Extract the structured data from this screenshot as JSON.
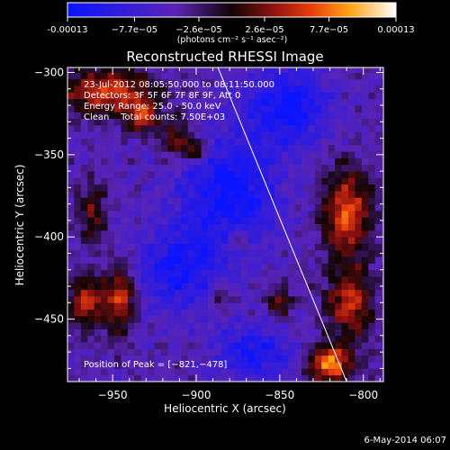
{
  "chart_data": {
    "type": "heatmap",
    "title": "Reconstructed RHESSI Image",
    "colorbar": {
      "ticks": [
        "-0.00013",
        "−7.7e−05",
        "−2.6e−05",
        "2.6e−05",
        "7.7e−05",
        "0.00013"
      ],
      "tick_values": [
        -0.00013,
        -7.7e-05,
        -2.6e-05,
        2.6e-05,
        7.7e-05,
        0.00013
      ],
      "range": [
        -0.00013,
        0.00013
      ],
      "unit_label": "(photons cm⁻² s⁻¹ asec⁻²)"
    },
    "xlabel": "Heliocentric X (arcsec)",
    "ylabel": "Heliocentric Y (arcsec)",
    "xlim": [
      -977,
      -788
    ],
    "ylim": [
      -488,
      -297
    ],
    "xticks": [
      -950,
      -900,
      -850,
      -800
    ],
    "xtick_labels": [
      "−950",
      "−900",
      "−850",
      "−800"
    ],
    "yticks": [
      -450,
      -400,
      -350,
      -300
    ],
    "ytick_labels": [
      "−450",
      "−400",
      "−350",
      "−300"
    ],
    "annotations": [
      "23-Jul-2012 08:05:50.000 to 08:11:50.000",
      "Detectors: 3F 5F 6F 7F 8F 9F, Att 0",
      "Energy Range: 25.0 - 50.0 keV",
      "Clean    Total counts: 7.50E+03"
    ],
    "peak": {
      "label": "Position of Peak = [−821,−478]",
      "x": -821,
      "y": -478
    },
    "limb_line": {
      "x": [
        -887,
        -810
      ],
      "y": [
        -297,
        -488
      ]
    },
    "hot_regions": [
      {
        "x": -953,
        "y": -312,
        "sx": 20,
        "sy": 10,
        "a": 0.0001
      },
      {
        "x": -932,
        "y": -327,
        "sx": 7,
        "sy": 7,
        "a": 8e-05
      },
      {
        "x": -912,
        "y": -340,
        "sx": 6,
        "sy": 9,
        "a": 7e-05
      },
      {
        "x": -900,
        "y": -347,
        "sx": 5,
        "sy": 5,
        "a": 8e-05
      },
      {
        "x": -962,
        "y": -385,
        "sx": 6,
        "sy": 12,
        "a": 6e-05
      },
      {
        "x": -965,
        "y": -440,
        "sx": 8,
        "sy": 12,
        "a": 9e-05
      },
      {
        "x": -945,
        "y": -437,
        "sx": 6,
        "sy": 14,
        "a": 0.0001
      },
      {
        "x": -810,
        "y": -385,
        "sx": 10,
        "sy": 18,
        "a": 0.00011
      },
      {
        "x": -808,
        "y": -440,
        "sx": 10,
        "sy": 15,
        "a": 9e-05
      },
      {
        "x": -820,
        "y": -477,
        "sx": 9,
        "sy": 8,
        "a": 0.00013
      },
      {
        "x": -850,
        "y": -440,
        "sx": 5,
        "sy": 6,
        "a": 7e-05
      },
      {
        "x": -875,
        "y": -402,
        "sx": 5,
        "sy": 5,
        "a": 5e-05
      },
      {
        "x": -885,
        "y": -437,
        "sx": 5,
        "sy": 6,
        "a": 5e-05
      }
    ],
    "cold_regions": [
      {
        "x": -880,
        "y": -372,
        "sx": 22,
        "sy": 25,
        "a": -8e-05
      },
      {
        "x": -910,
        "y": -420,
        "sx": 18,
        "sy": 18,
        "a": -7e-05
      },
      {
        "x": -845,
        "y": -320,
        "sx": 18,
        "sy": 16,
        "a": -8e-05
      },
      {
        "x": -865,
        "y": -470,
        "sx": 15,
        "sy": 12,
        "a": -7e-05
      }
    ]
  },
  "footer": {
    "date": "6-May-2014 06:07"
  }
}
